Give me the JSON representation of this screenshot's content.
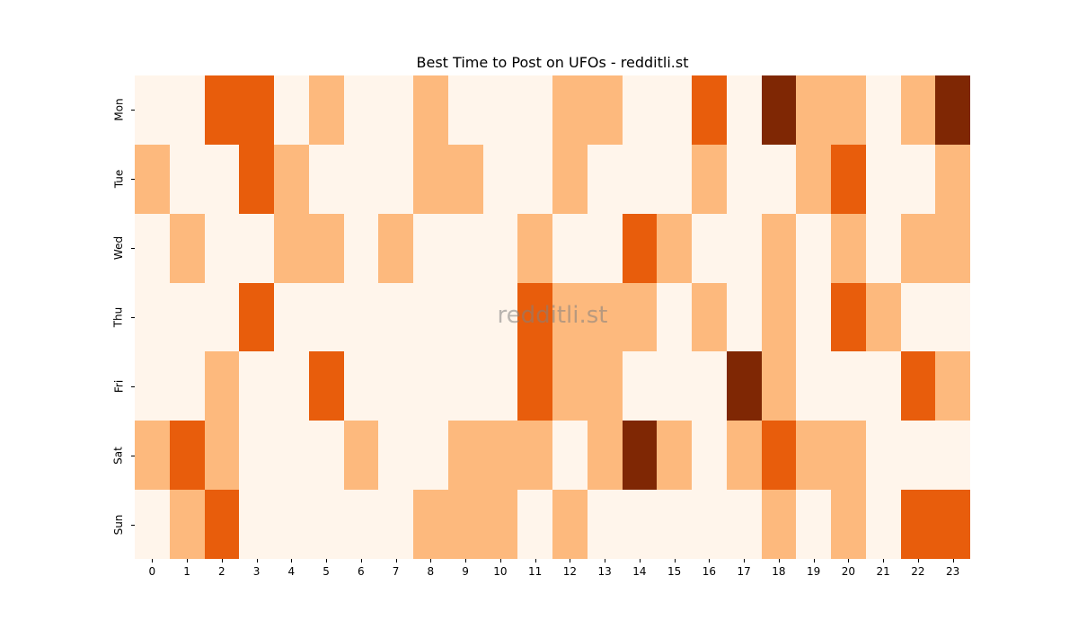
{
  "chart_data": {
    "type": "heatmap",
    "title": "Best Time to Post on UFOs - redditli.st",
    "xlabel": "",
    "ylabel": "",
    "x": [
      "0",
      "1",
      "2",
      "3",
      "4",
      "5",
      "6",
      "7",
      "8",
      "9",
      "10",
      "11",
      "12",
      "13",
      "14",
      "15",
      "16",
      "17",
      "18",
      "19",
      "20",
      "21",
      "22",
      "23"
    ],
    "y": [
      "Mon",
      "Tue",
      "Wed",
      "Thu",
      "Fri",
      "Sat",
      "Sun"
    ],
    "values": [
      [
        0,
        0,
        2,
        2,
        0,
        1,
        0,
        0,
        1,
        0,
        0,
        0,
        1,
        1,
        0,
        0,
        2,
        0,
        3,
        1,
        1,
        0,
        1,
        3
      ],
      [
        1,
        0,
        0,
        2,
        1,
        0,
        0,
        0,
        1,
        1,
        0,
        0,
        1,
        0,
        0,
        0,
        1,
        0,
        0,
        1,
        2,
        0,
        0,
        1
      ],
      [
        0,
        1,
        0,
        0,
        1,
        1,
        0,
        1,
        0,
        0,
        0,
        1,
        0,
        0,
        2,
        1,
        0,
        0,
        1,
        0,
        1,
        0,
        1,
        1
      ],
      [
        0,
        0,
        0,
        2,
        0,
        0,
        0,
        0,
        0,
        0,
        0,
        2,
        1,
        1,
        1,
        0,
        1,
        0,
        1,
        0,
        2,
        1,
        0,
        0
      ],
      [
        0,
        0,
        1,
        0,
        0,
        2,
        0,
        0,
        0,
        0,
        0,
        2,
        1,
        1,
        0,
        0,
        0,
        3,
        1,
        0,
        0,
        0,
        2,
        1
      ],
      [
        1,
        2,
        1,
        0,
        0,
        0,
        1,
        0,
        0,
        1,
        1,
        1,
        0,
        1,
        3,
        1,
        0,
        1,
        2,
        1,
        1,
        0,
        0,
        0
      ],
      [
        0,
        1,
        2,
        0,
        0,
        0,
        0,
        0,
        1,
        1,
        1,
        0,
        1,
        0,
        0,
        0,
        0,
        0,
        1,
        0,
        1,
        0,
        2,
        2
      ]
    ],
    "value_scale_note": "relative intensity levels 0-3 (no colorbar shown)",
    "colormap": "Oranges",
    "level_colors": [
      "#fff5eb",
      "#fdb97d",
      "#e85d0c",
      "#7f2704"
    ],
    "grid": false,
    "legend": "none",
    "watermark": "redditli.st"
  }
}
